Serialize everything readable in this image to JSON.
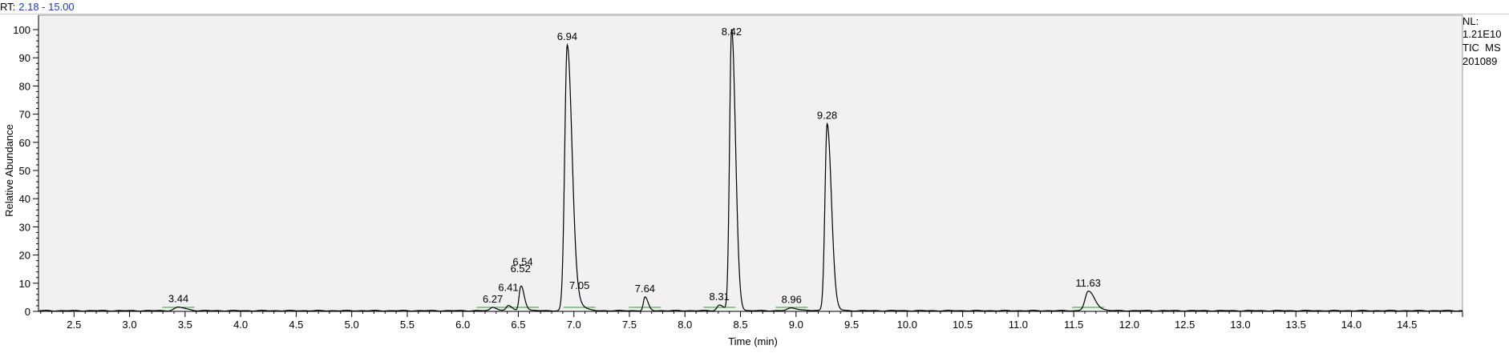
{
  "header": {
    "rt_label": "RT:",
    "rt_range": "2.18 - 15.00"
  },
  "info": {
    "nl_label": "NL:",
    "nl_value": "1.21E10",
    "trace": "TIC  MS",
    "sample": "201089"
  },
  "colors": {
    "plot_background": "#f1f1f1",
    "trace": "#000000",
    "baseline_marker": "#2e9a2e",
    "rt_range": "#1f3fa8"
  },
  "chart_data": {
    "type": "line",
    "title": "",
    "xlabel": "Time (min)",
    "ylabel": "Relative Abundance",
    "xlim": [
      2.18,
      15.0
    ],
    "ylim": [
      0,
      100
    ],
    "x_ticks": [
      2.5,
      3.0,
      3.5,
      4.0,
      4.5,
      5.0,
      5.5,
      6.0,
      6.5,
      7.0,
      7.5,
      8.0,
      8.5,
      9.0,
      9.5,
      10.0,
      10.5,
      11.0,
      11.5,
      12.0,
      12.5,
      13.0,
      13.5,
      14.0,
      14.5
    ],
    "x_tick_labels": [
      "2.5",
      "3.0",
      "3.5",
      "4.0",
      "4.5",
      "5.0",
      "5.5",
      "6.0",
      "6.5",
      "7.0",
      "7.5",
      "8.0",
      "8.5",
      "9.0",
      "9.5",
      "10.0",
      "10.5",
      "11.0",
      "11.5",
      "12.0",
      "12.5",
      "13.0",
      "13.5",
      "14.0",
      "14.5"
    ],
    "y_ticks": [
      0,
      10,
      20,
      30,
      40,
      50,
      60,
      70,
      80,
      90,
      100
    ],
    "y_tick_labels": [
      "0",
      "10",
      "20",
      "30",
      "40",
      "50",
      "60",
      "70",
      "80",
      "90",
      "100"
    ],
    "grid": false,
    "peaks": [
      {
        "rt": 3.44,
        "height": 1.2,
        "width": 0.05,
        "label": "3.44"
      },
      {
        "rt": 6.27,
        "height": 1.2,
        "width": 0.03,
        "label": "6.27"
      },
      {
        "rt": 6.41,
        "height": 1.8,
        "width": 0.025,
        "label": "6.41"
      },
      {
        "rt": 6.52,
        "height": 7.5,
        "width": 0.02,
        "label": "6.52"
      },
      {
        "rt": 6.54,
        "height": 2.0,
        "width": 0.025,
        "label": "6.54"
      },
      {
        "rt": 6.94,
        "height": 94,
        "width": 0.032,
        "label": "6.94"
      },
      {
        "rt": 7.05,
        "height": 1.4,
        "width": 0.04,
        "label": "7.05"
      },
      {
        "rt": 7.64,
        "height": 4.8,
        "width": 0.02,
        "label": "7.64"
      },
      {
        "rt": 8.31,
        "height": 2.0,
        "width": 0.03,
        "label": "8.31"
      },
      {
        "rt": 8.42,
        "height": 100,
        "width": 0.026,
        "label": "8.42"
      },
      {
        "rt": 8.96,
        "height": 0.9,
        "width": 0.05,
        "label": "8.96"
      },
      {
        "rt": 9.28,
        "height": 66,
        "width": 0.028,
        "label": "9.28"
      },
      {
        "rt": 11.63,
        "height": 6.5,
        "width": 0.04,
        "label": "11.63"
      }
    ]
  }
}
